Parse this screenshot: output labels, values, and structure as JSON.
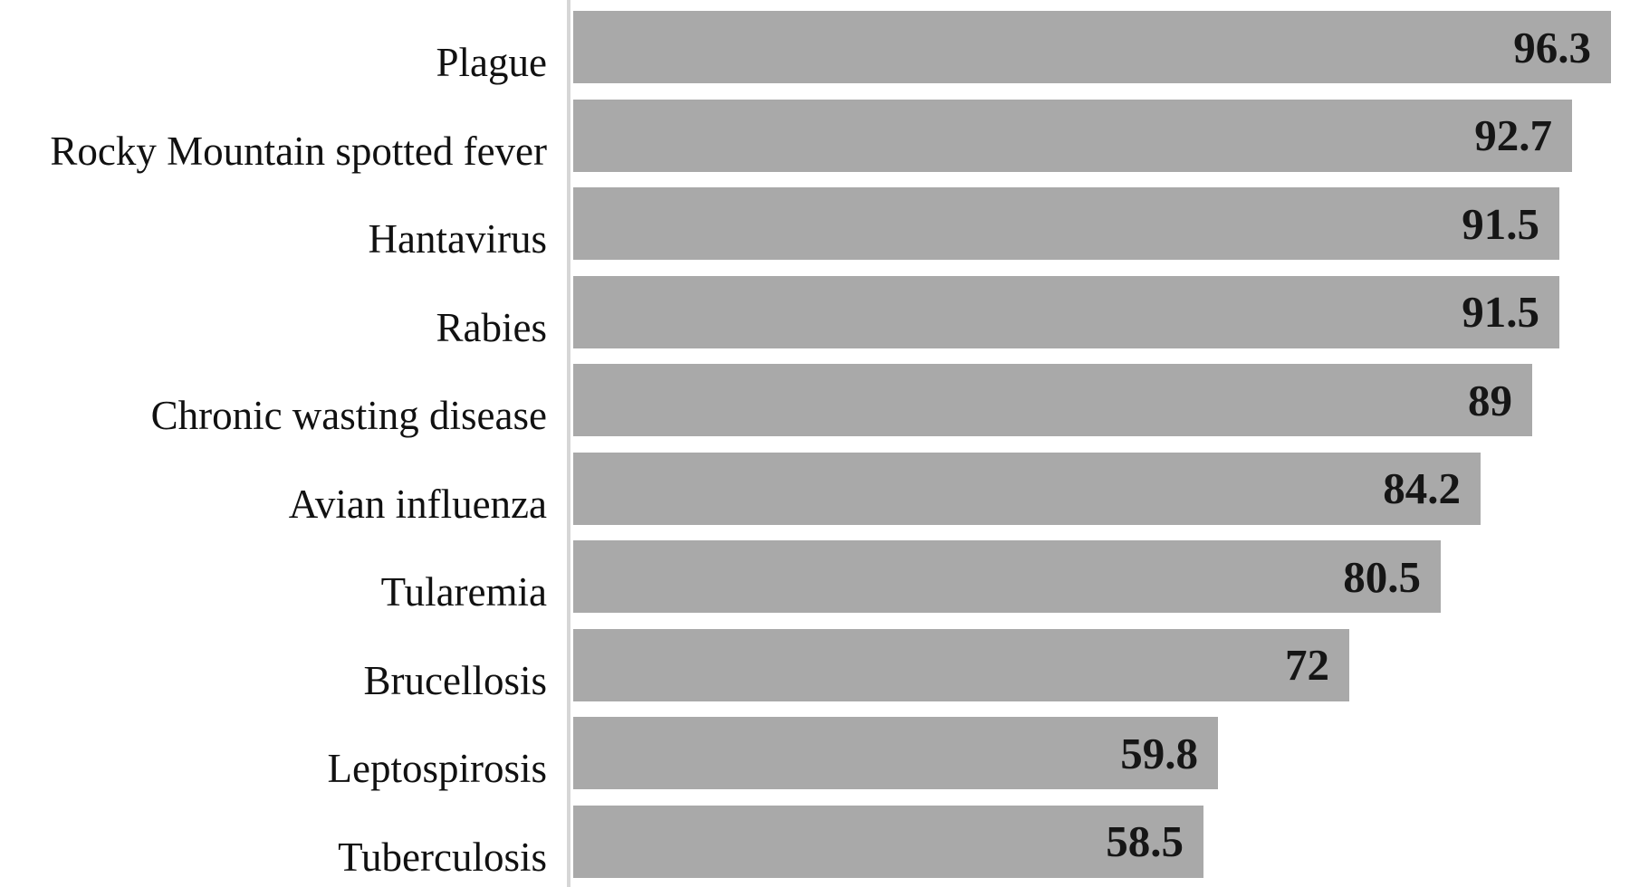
{
  "chart_data": {
    "type": "bar",
    "orientation": "horizontal",
    "title": "",
    "xlabel": "",
    "ylabel": "",
    "categories": [
      "Plague",
      "Rocky Mountain spotted fever",
      "Hantavirus",
      "Rabies",
      "Chronic wasting disease",
      "Avian influenza",
      "Tularemia",
      "Brucellosis",
      "Leptospirosis",
      "Tuberculosis"
    ],
    "values": [
      96.3,
      92.7,
      91.5,
      91.5,
      89,
      84.2,
      80.5,
      72,
      59.8,
      58.5
    ],
    "value_labels": [
      "96.3",
      "92.7",
      "91.5",
      "91.5",
      "89",
      "84.2",
      "80.5",
      "72",
      "59.8",
      "58.5"
    ],
    "xlim": [
      0,
      100
    ],
    "grid": false,
    "legend": false,
    "data_labels_position": "inside-end",
    "bar_color": "#a9a9a9",
    "value_text_color": "#161616",
    "label_text_color": "#111111",
    "axis_line_color": "#d6d6d6",
    "background_color": "#ffffff"
  }
}
